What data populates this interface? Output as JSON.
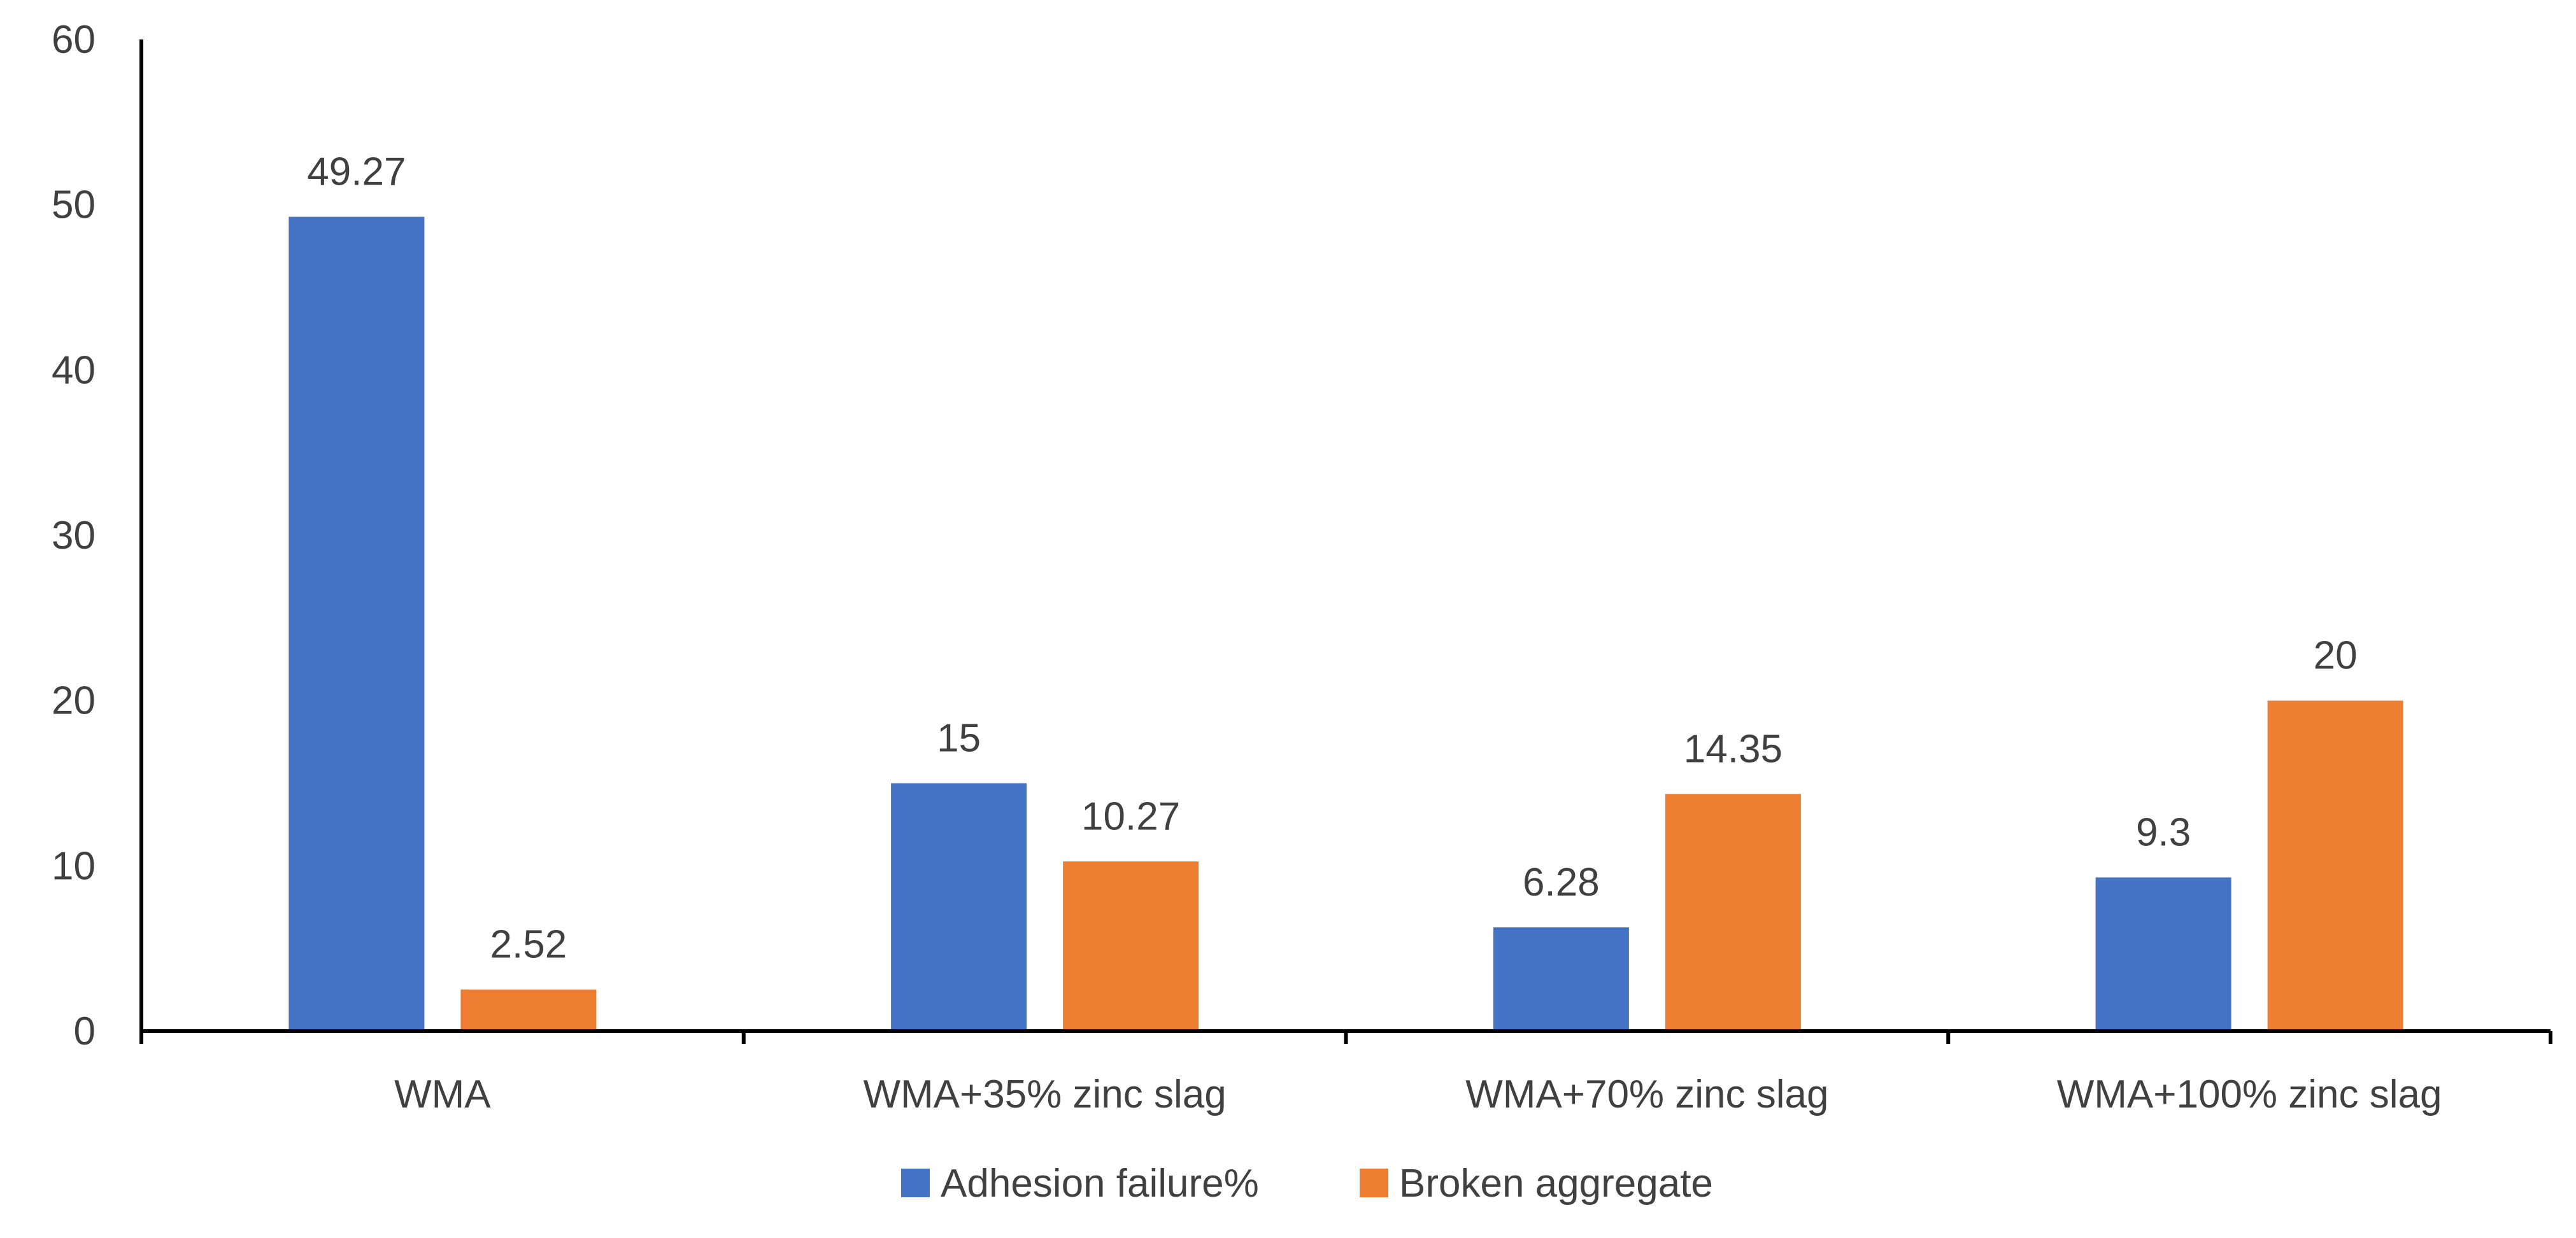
{
  "chart_data": {
    "type": "bar",
    "title": "",
    "xlabel": "",
    "ylabel": "",
    "categories": [
      "WMA",
      "WMA+35% zinc slag",
      "WMA+70% zinc slag",
      "WMA+100% zinc slag"
    ],
    "series": [
      {
        "name": "Adhesion failure%",
        "color": "#4472C4",
        "values": [
          49.27,
          15,
          6.28,
          9.3
        ],
        "labels": [
          "49.27",
          "15",
          "6.28",
          "9.3"
        ]
      },
      {
        "name": "Broken aggregate",
        "color": "#ED7D31",
        "values": [
          2.52,
          10.27,
          14.35,
          20
        ],
        "labels": [
          "2.52",
          "10.27",
          "14.35",
          "20"
        ]
      }
    ],
    "ylim": [
      0,
      60
    ],
    "yticks": [
      0,
      10,
      20,
      30,
      40,
      50,
      60
    ],
    "ytick_labels": [
      "0",
      "10",
      "20",
      "30",
      "40",
      "50",
      "60"
    ],
    "grid": false,
    "legend_position": "bottom"
  }
}
